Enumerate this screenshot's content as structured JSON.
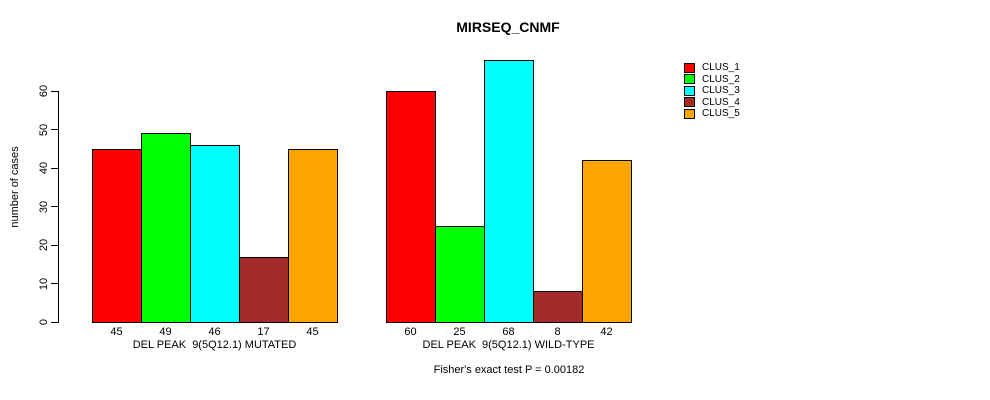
{
  "title": "MIRSEQ_CNMF",
  "chart_data": {
    "type": "bar",
    "title": "MIRSEQ_CNMF",
    "ylabel": "number of cases",
    "xlabel": "",
    "ylim": [
      0,
      68
    ],
    "yticks": [
      0,
      10,
      20,
      30,
      40,
      50,
      60
    ],
    "grid": false,
    "legend_position": "right",
    "legend": [
      "CLUS_1",
      "CLUS_2",
      "CLUS_3",
      "CLUS_4",
      "CLUS_5"
    ],
    "series_colors": [
      "#FF0000",
      "#00FF00",
      "#00FFFF",
      "#A52A2A",
      "#FFA500"
    ],
    "groups": [
      {
        "label": "DEL PEAK  9(5Q12.1) MUTATED",
        "values": [
          45,
          49,
          46,
          17,
          45
        ]
      },
      {
        "label": "DEL PEAK  9(5Q12.1) WILD-TYPE",
        "values": [
          60,
          25,
          68,
          8,
          42
        ]
      }
    ],
    "bar_value_labels_shown": true,
    "annotation": "Fisher's exact test P = 0.00182"
  }
}
